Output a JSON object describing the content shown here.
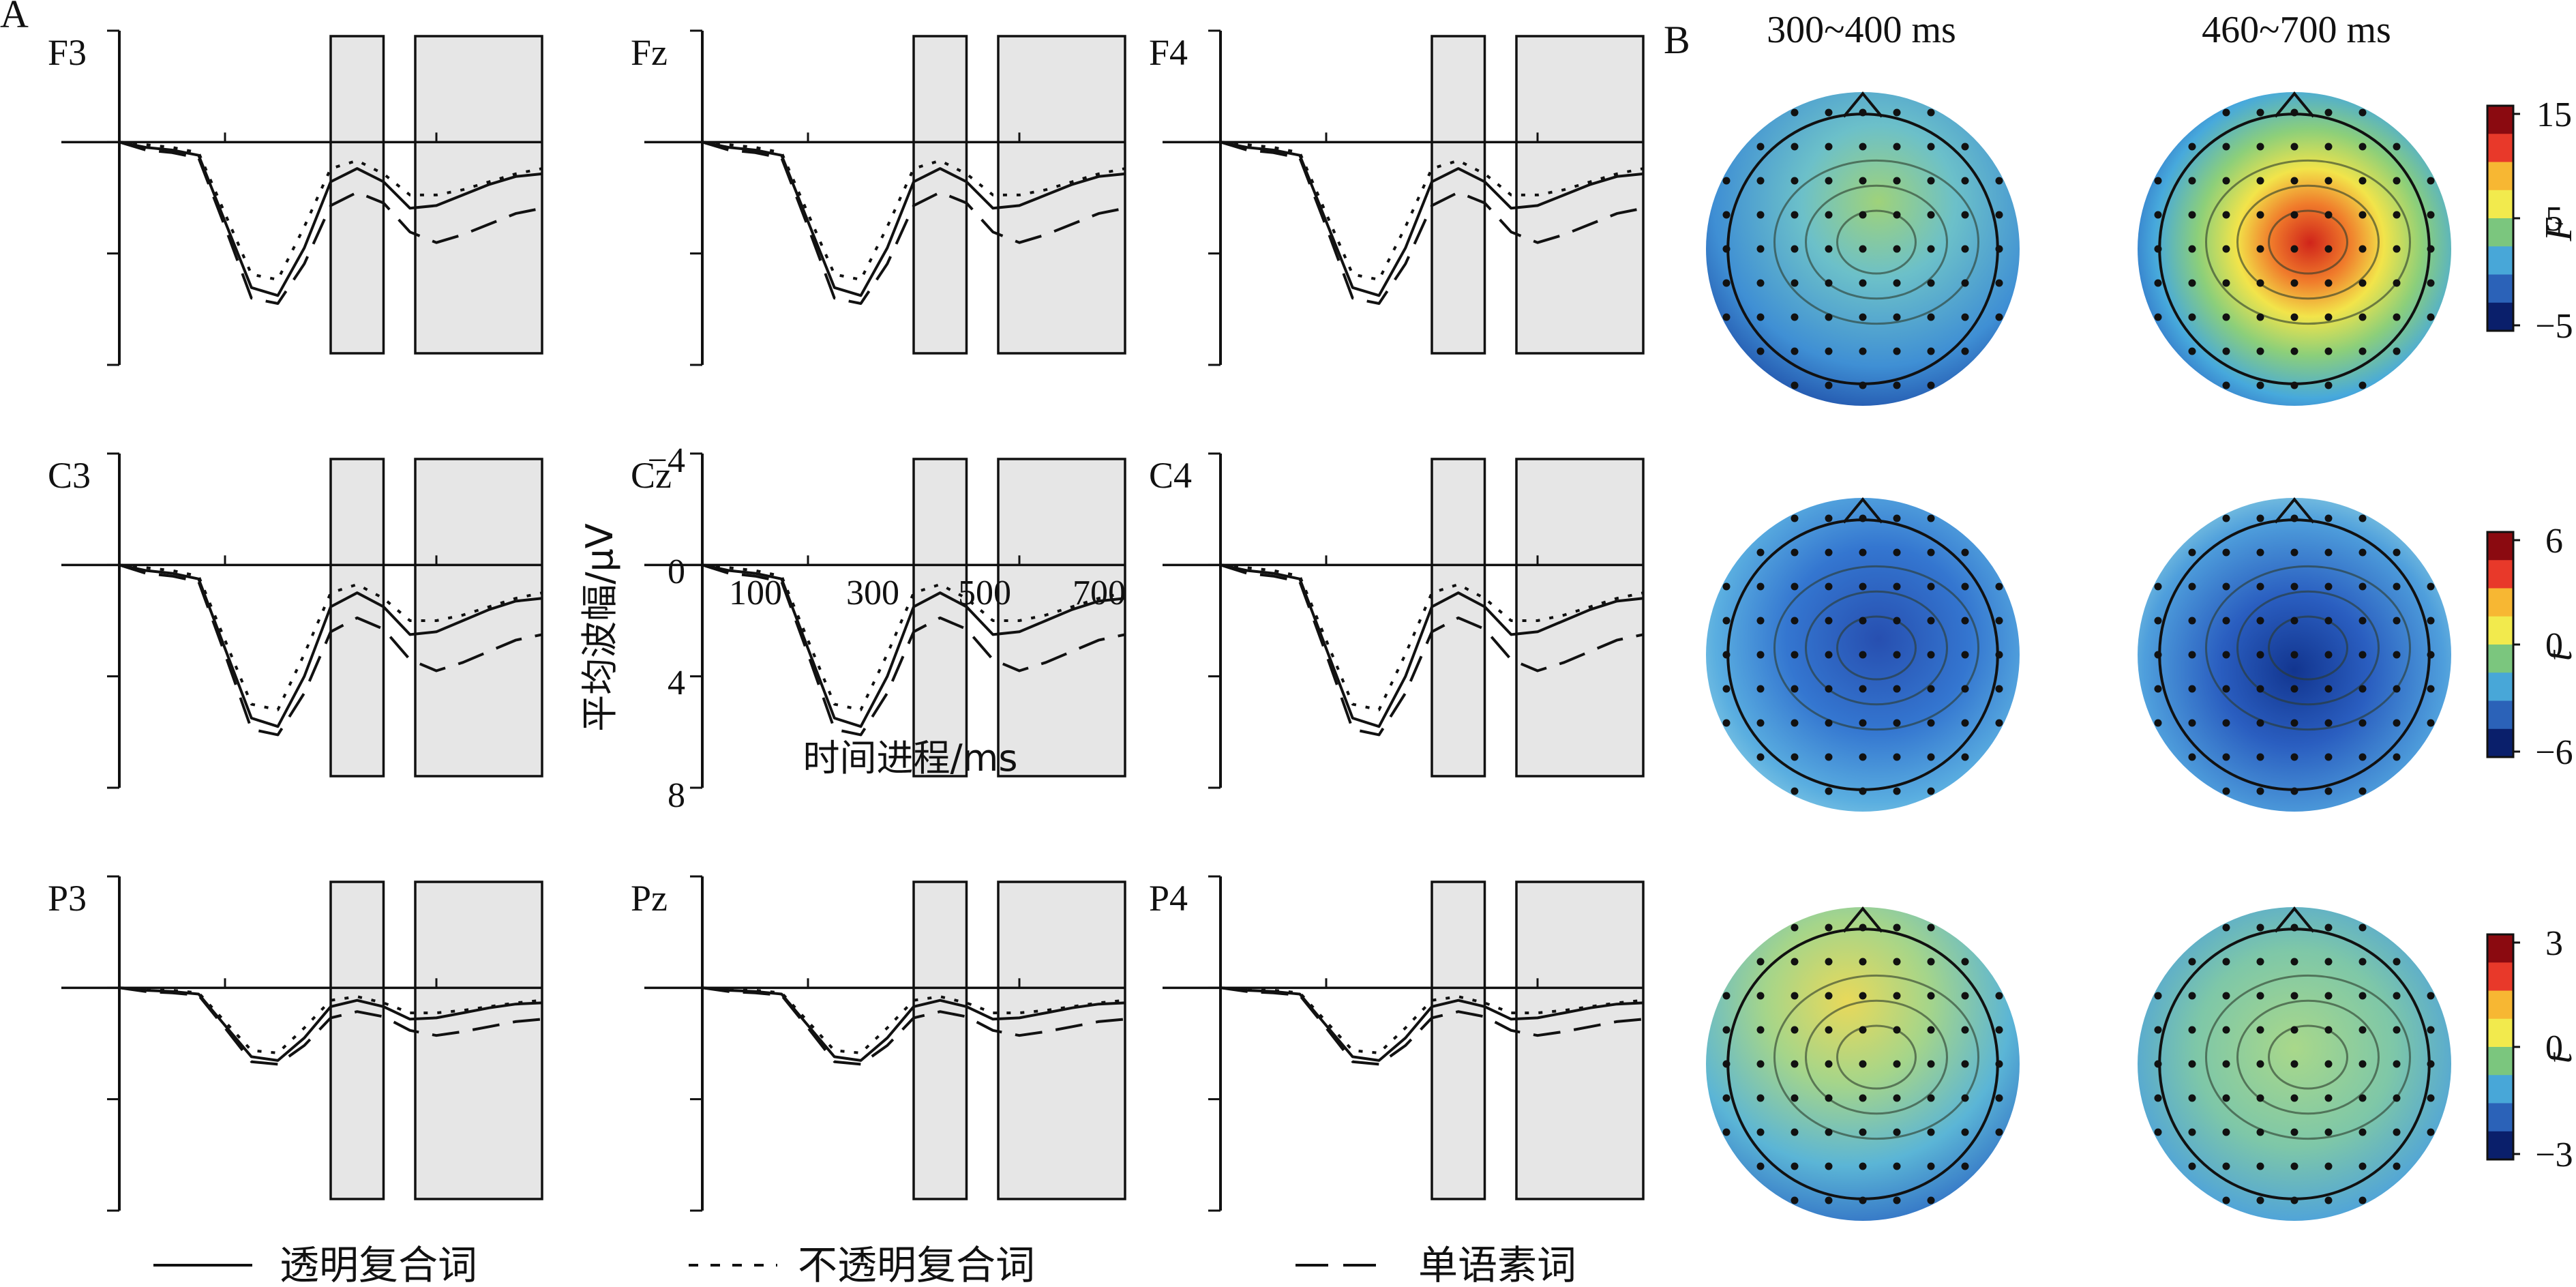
{
  "panel_labels": {
    "a": "A",
    "b": "B"
  },
  "legend": [
    {
      "label": "透明复合词",
      "style": "solid"
    },
    {
      "label": "不透明复合词",
      "style": "dotted"
    },
    {
      "label": "单语素词",
      "style": "dashed"
    }
  ],
  "center_axes": {
    "y_label": "平均波幅/μV",
    "x_label": "时间进程/ms",
    "y_ticks": [
      "−4",
      "0",
      "4",
      "8"
    ],
    "x_ticks": [
      "100",
      "300",
      "500",
      "700"
    ]
  },
  "time_windows_ms": [
    [
      300,
      400
    ],
    [
      460,
      700
    ]
  ],
  "electrodes": [
    {
      "label": "F3",
      "row": 0,
      "col": 0
    },
    {
      "label": "Fz",
      "row": 0,
      "col": 1
    },
    {
      "label": "F4",
      "row": 0,
      "col": 2
    },
    {
      "label": "C3",
      "row": 1,
      "col": 0
    },
    {
      "label": "Cz",
      "row": 1,
      "col": 1
    },
    {
      "label": "C4",
      "row": 1,
      "col": 2
    },
    {
      "label": "P3",
      "row": 2,
      "col": 0
    },
    {
      "label": "Pz",
      "row": 2,
      "col": 1
    },
    {
      "label": "P4",
      "row": 2,
      "col": 2
    }
  ],
  "topomap_headers": [
    "300~400 ms",
    "460~700 ms"
  ],
  "colorbars": [
    {
      "stat": "F",
      "ticks": [
        "15",
        "5",
        "−5"
      ],
      "colors": [
        "#8b0a10",
        "#e8392a",
        "#f7b733",
        "#f2ea4d",
        "#7bc67e",
        "#48a7d8",
        "#2b62b8",
        "#0a1f6b"
      ]
    },
    {
      "stat": "t",
      "ticks": [
        "6",
        "0",
        "−6"
      ],
      "colors": [
        "#8b0a10",
        "#e8392a",
        "#f7b733",
        "#f2ea4d",
        "#7bc67e",
        "#48a7d8",
        "#2b62b8",
        "#0a1f6b"
      ]
    },
    {
      "stat": "t",
      "ticks": [
        "3",
        "0",
        "−3"
      ],
      "colors": [
        "#8b0a10",
        "#e8392a",
        "#f7b733",
        "#f2ea4d",
        "#7bc67e",
        "#48a7d8",
        "#2b62b8",
        "#0a1f6b"
      ]
    }
  ],
  "chart_data": {
    "type": "line",
    "x_unit": "ms",
    "xlim": [
      -100,
      700
    ],
    "ylim": [
      -4,
      8
    ],
    "y_inverted": true,
    "series_names": [
      "透明复合词",
      "不透明复合词",
      "单语素词"
    ],
    "cz_waveforms": {
      "x": [
        -100,
        -50,
        0,
        50,
        100,
        150,
        200,
        250,
        300,
        350,
        400,
        450,
        500,
        550,
        600,
        650,
        700
      ],
      "series": [
        {
          "name": "透明复合词",
          "values": [
            0,
            0.2,
            0.3,
            0.5,
            3.0,
            5.5,
            5.8,
            4.0,
            1.5,
            1.0,
            1.5,
            2.5,
            2.4,
            2.0,
            1.6,
            1.3,
            1.2
          ]
        },
        {
          "name": "不透明复合词",
          "values": [
            0,
            0.1,
            0.2,
            0.4,
            2.7,
            5.0,
            5.2,
            3.2,
            1.0,
            0.7,
            1.2,
            2.0,
            2.0,
            1.8,
            1.5,
            1.2,
            1.0
          ]
        },
        {
          "name": "单语素词",
          "values": [
            0,
            0.3,
            0.4,
            0.6,
            3.2,
            5.9,
            6.1,
            4.6,
            2.4,
            1.9,
            2.3,
            3.4,
            3.8,
            3.5,
            3.1,
            2.7,
            2.5
          ]
        }
      ]
    }
  }
}
